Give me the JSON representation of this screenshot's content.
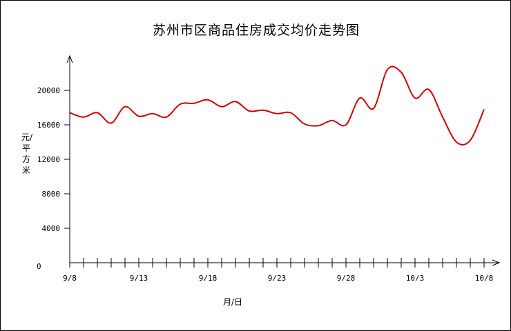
{
  "chart_data": {
    "type": "line",
    "title": "苏州市区商品住房成交均价走势图",
    "ylabel": "元/平方米",
    "xlabel": "月/日",
    "ylim": [
      0,
      24000
    ],
    "yticks": [
      0,
      4000,
      8000,
      12000,
      16000,
      20000
    ],
    "xticks": [
      "9/8",
      "9/13",
      "9/18",
      "9/23",
      "9/28",
      "10/3",
      "10/8"
    ],
    "x": [
      "9/8",
      "9/9",
      "9/10",
      "9/11",
      "9/12",
      "9/13",
      "9/14",
      "9/15",
      "9/16",
      "9/17",
      "9/18",
      "9/19",
      "9/20",
      "9/21",
      "9/22",
      "9/23",
      "9/24",
      "9/25",
      "9/26",
      "9/27",
      "9/28",
      "9/29",
      "9/30",
      "10/1",
      "10/2",
      "10/3",
      "10/4",
      "10/5",
      "10/6",
      "10/7",
      "10/8"
    ],
    "series": [
      {
        "color": "#cc0000",
        "values": [
          17400,
          16900,
          17400,
          16200,
          18100,
          17000,
          17300,
          16900,
          18400,
          18500,
          18900,
          18100,
          18700,
          17600,
          17700,
          17300,
          17400,
          16100,
          15900,
          16500,
          16000,
          19100,
          17900,
          22400,
          22100,
          19100,
          20100,
          16900,
          14000,
          14200,
          17800
        ]
      }
    ],
    "grid": false
  }
}
